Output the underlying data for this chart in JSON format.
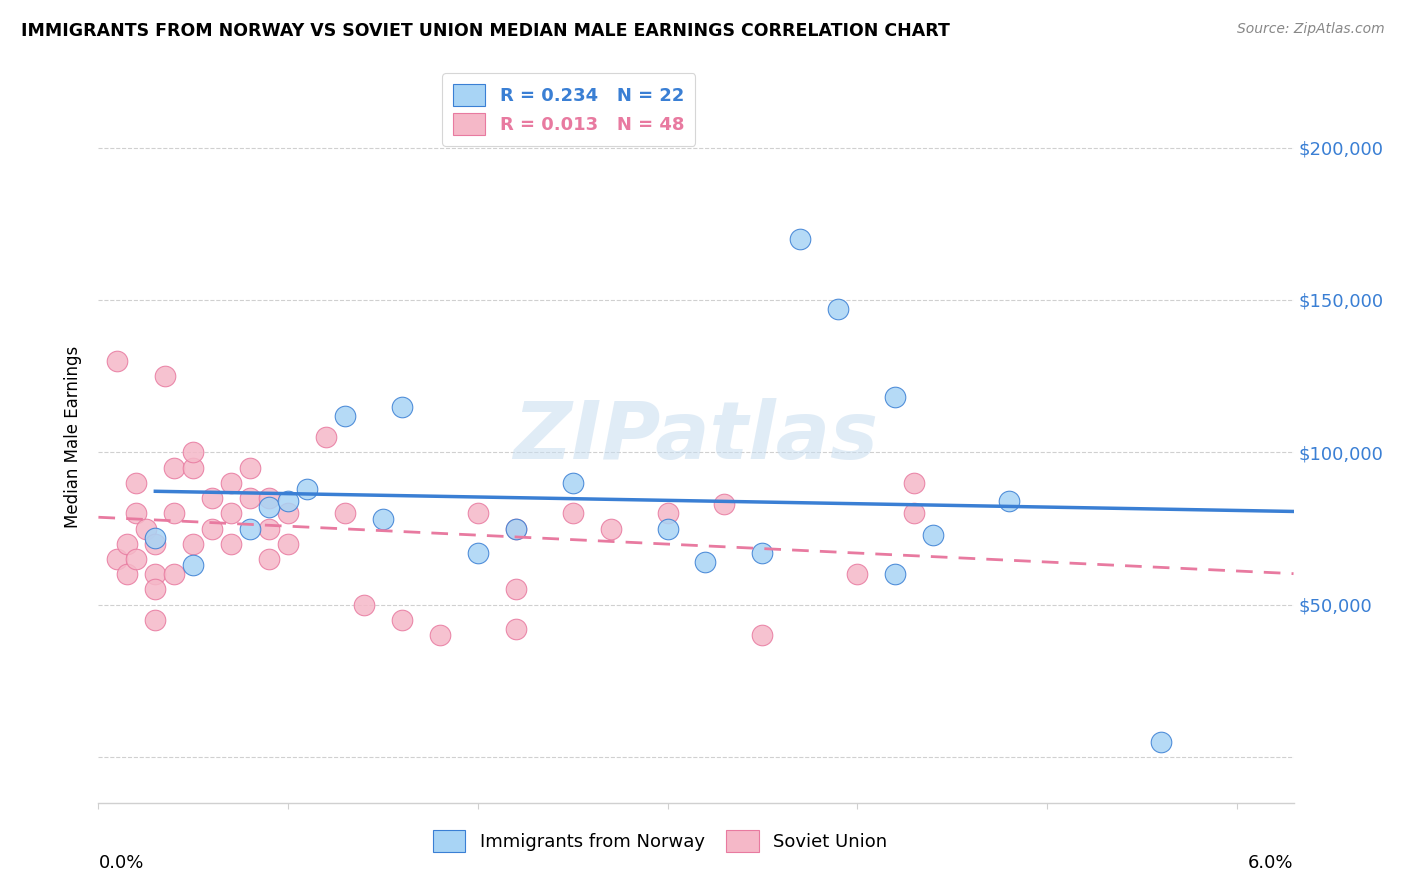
{
  "title": "IMMIGRANTS FROM NORWAY VS SOVIET UNION MEDIAN MALE EARNINGS CORRELATION CHART",
  "source": "Source: ZipAtlas.com",
  "ylabel": "Median Male Earnings",
  "watermark": "ZIPatlas",
  "norway_R": 0.234,
  "norway_N": 22,
  "soviet_R": 0.013,
  "soviet_N": 48,
  "norway_color": "#a8d4f5",
  "soviet_color": "#f5b8c8",
  "norway_line_color": "#3a7fd4",
  "soviet_line_color": "#e87aa0",
  "background_color": "#ffffff",
  "legend_label_norway": "R = 0.234   N = 22",
  "legend_label_soviet": "R = 0.013   N = 48",
  "yticks": [
    0,
    50000,
    100000,
    150000,
    200000
  ],
  "ytick_labels": [
    "",
    "$50,000",
    "$100,000",
    "$150,000",
    "$200,000"
  ],
  "xlim": [
    0.0,
    0.063
  ],
  "ylim": [
    -15000,
    225000
  ],
  "norway_x": [
    0.003,
    0.005,
    0.008,
    0.009,
    0.01,
    0.011,
    0.013,
    0.015,
    0.016,
    0.02,
    0.022,
    0.025,
    0.03,
    0.032,
    0.035,
    0.037,
    0.039,
    0.042,
    0.044,
    0.048,
    0.056,
    0.042
  ],
  "norway_y": [
    72000,
    63000,
    75000,
    82000,
    84000,
    88000,
    112000,
    78000,
    115000,
    67000,
    75000,
    90000,
    75000,
    64000,
    67000,
    170000,
    147000,
    60000,
    73000,
    84000,
    5000,
    118000
  ],
  "soviet_x": [
    0.001,
    0.001,
    0.0015,
    0.0015,
    0.002,
    0.002,
    0.002,
    0.0025,
    0.003,
    0.003,
    0.003,
    0.003,
    0.0035,
    0.004,
    0.004,
    0.004,
    0.005,
    0.005,
    0.005,
    0.006,
    0.006,
    0.007,
    0.007,
    0.007,
    0.008,
    0.008,
    0.009,
    0.009,
    0.009,
    0.01,
    0.01,
    0.012,
    0.013,
    0.014,
    0.016,
    0.018,
    0.02,
    0.022,
    0.022,
    0.022,
    0.025,
    0.027,
    0.03,
    0.033,
    0.035,
    0.04,
    0.043,
    0.043
  ],
  "soviet_y": [
    130000,
    65000,
    60000,
    70000,
    90000,
    80000,
    65000,
    75000,
    60000,
    70000,
    55000,
    45000,
    125000,
    95000,
    80000,
    60000,
    95000,
    100000,
    70000,
    85000,
    75000,
    90000,
    80000,
    70000,
    95000,
    85000,
    85000,
    75000,
    65000,
    80000,
    70000,
    105000,
    80000,
    50000,
    45000,
    40000,
    80000,
    75000,
    42000,
    55000,
    80000,
    75000,
    80000,
    83000,
    40000,
    60000,
    90000,
    80000
  ]
}
